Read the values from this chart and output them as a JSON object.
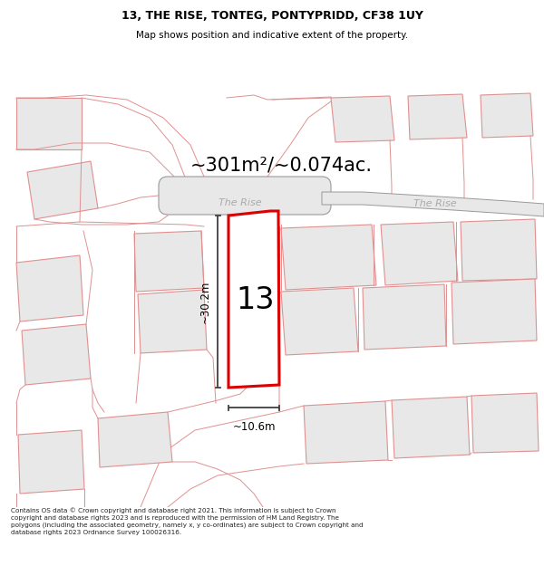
{
  "title_line1": "13, THE RISE, TONTEG, PONTYPRIDD, CF38 1UY",
  "title_line2": "Map shows position and indicative extent of the property.",
  "area_text": "~301m²/~0.074ac.",
  "width_label": "~10.6m",
  "height_label": "~30.2m",
  "plot_number": "13",
  "street_label1": "The Rise",
  "street_label2": "The Rise",
  "footer_text": "Contains OS data © Crown copyright and database right 2021. This information is subject to Crown copyright and database rights 2023 and is reproduced with the permission of HM Land Registry. The polygons (including the associated geometry, namely x, y co-ordinates) are subject to Crown copyright and database rights 2023 Ordnance Survey 100026316.",
  "bg_color": "#ffffff",
  "map_bg_color": "#ffffff",
  "plot_outline_color": "#dd0000",
  "plot_fill_color": "#ffffff",
  "dim_line_color": "#404040",
  "text_color": "#000000",
  "road_text_color": "#aaaaaa",
  "building_fill": "#e8e8e8",
  "building_edge": "#e09090",
  "road_fill": "#e0e0e0",
  "road_edge": "#b0b0b0",
  "pink_line": "#e09090"
}
